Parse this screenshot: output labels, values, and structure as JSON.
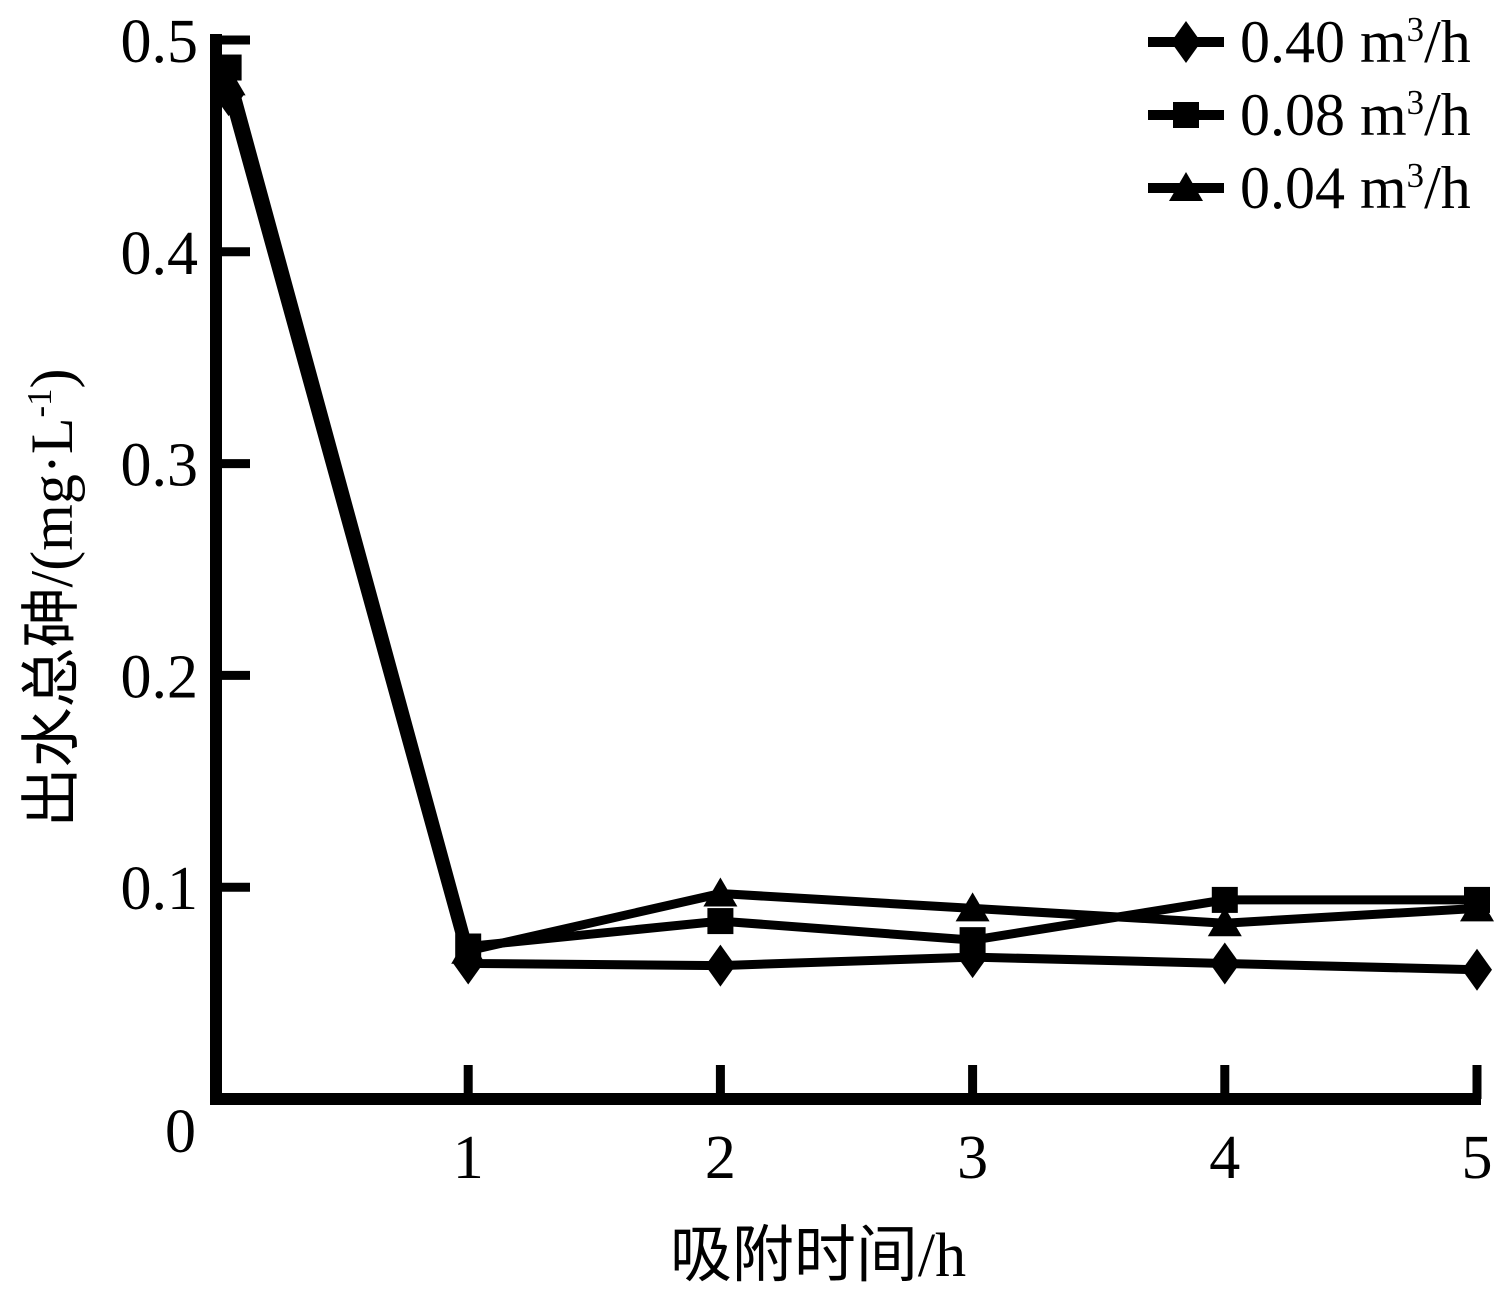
{
  "chart_data": {
    "type": "line",
    "title": "",
    "xlabel": "吸附时间/h",
    "ylabel": "出水总砷/(mg·L⁻¹)",
    "ylabel_parts": {
      "prefix": "出水总砷/(mg·L",
      "sup": "-1",
      "suffix": ")"
    },
    "xlim": [
      0,
      5
    ],
    "ylim": [
      0,
      0.5
    ],
    "x_ticks": [
      1,
      2,
      3,
      4,
      5
    ],
    "x_tick_labels": [
      "1",
      "2",
      "3",
      "4",
      "5"
    ],
    "y_ticks": [
      0.1,
      0.2,
      0.3,
      0.4,
      0.5
    ],
    "y_tick_labels": [
      "0.1",
      "0.2",
      "0.3",
      "0.4",
      "0.5"
    ],
    "origin_label": "0",
    "grid": false,
    "legend_position": "top-right",
    "line_color": "#000000",
    "background_color": "#ffffff",
    "x": [
      0.05,
      1,
      2,
      3,
      4,
      5
    ],
    "series": [
      {
        "name": "0.40 m³/h",
        "label_parts": {
          "base": "0.40 m",
          "sup": "3",
          "tail": "/h"
        },
        "marker": "diamond",
        "values": [
          0.474,
          0.064,
          0.063,
          0.067,
          0.064,
          0.061
        ]
      },
      {
        "name": "0.08 m³/h",
        "label_parts": {
          "base": "0.08 m",
          "sup": "3",
          "tail": "/h"
        },
        "marker": "square",
        "values": [
          0.487,
          0.072,
          0.084,
          0.075,
          0.094,
          0.094
        ]
      },
      {
        "name": "0.04 m³/h",
        "label_parts": {
          "base": "0.04 m",
          "sup": "3",
          "tail": "/h"
        },
        "marker": "triangle",
        "values": [
          0.48,
          0.07,
          0.097,
          0.09,
          0.083,
          0.09
        ]
      }
    ]
  }
}
